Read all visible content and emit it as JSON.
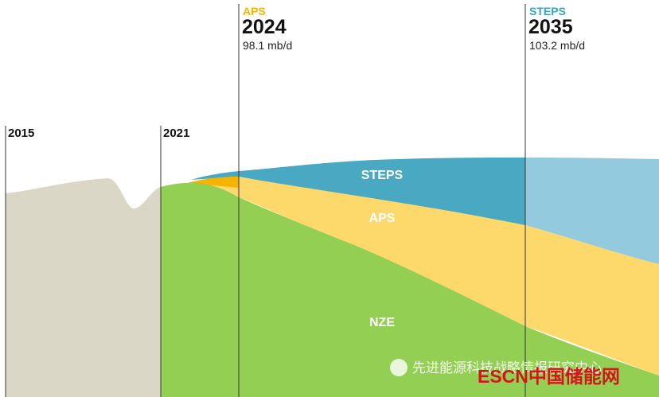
{
  "markers": [
    {
      "year": "2015"
    },
    {
      "year": "2021"
    },
    {
      "scenario": "APS",
      "year": "2024",
      "value": "98.1 mb/d"
    },
    {
      "scenario": "STEPS",
      "year": "2035",
      "value": "103.2 mb/d"
    }
  ],
  "areas": [
    "STEPS",
    "APS",
    "NZE"
  ],
  "watermark": {
    "wechat": "先进能源科技战略情报研究中心",
    "brand": "ESCN中国储能网"
  }
}
